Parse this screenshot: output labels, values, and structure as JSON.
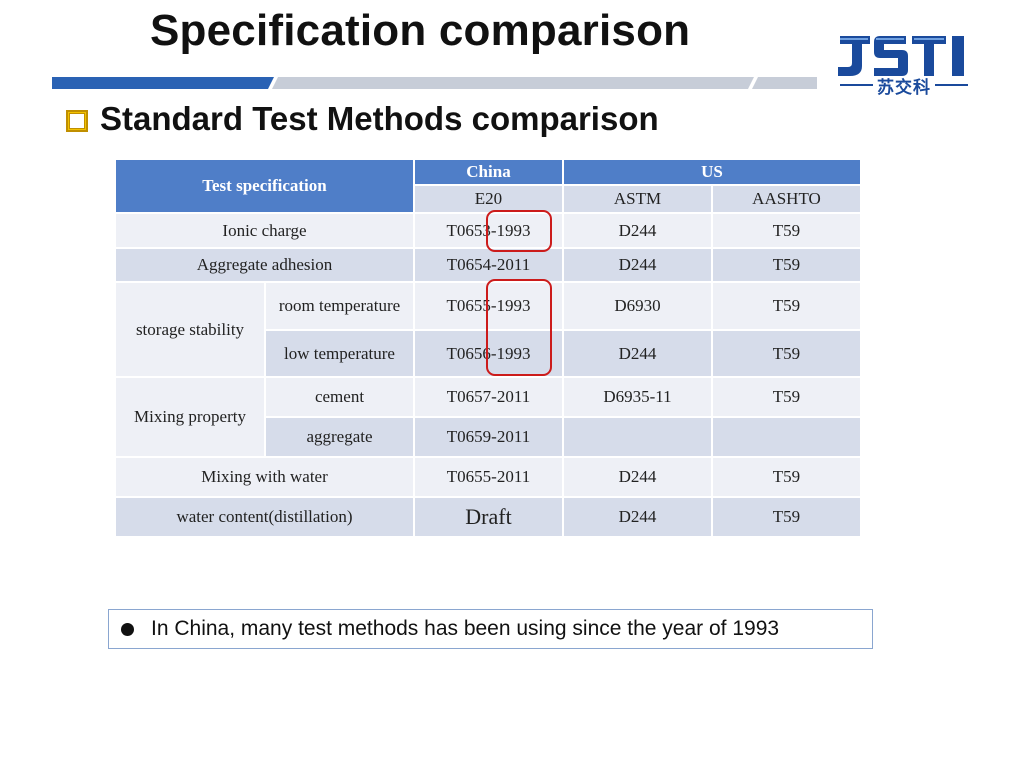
{
  "slide": {
    "title": "Specification comparison",
    "subtitle": "Standard Test Methods comparison",
    "logo": {
      "text": "JSTI",
      "subtext": "苏交科"
    }
  },
  "table": {
    "header": {
      "spec_label": "Test specification",
      "china": "China",
      "us": "US",
      "e20": "E20",
      "astm": "ASTM",
      "aashto": "AASHTO"
    },
    "rows": [
      {
        "test": "Ionic charge",
        "e20": "T0653-1993",
        "astm": "D244",
        "aashto": "T59"
      },
      {
        "test": "Aggregate adhesion",
        "e20": "T0654-2011",
        "astm": "D244",
        "aashto": "T59"
      },
      {
        "group": "storage stability",
        "test": "room temperature",
        "e20": "T0655-1993",
        "astm": "D6930",
        "aashto": "T59"
      },
      {
        "test": "low temperature",
        "e20": "T0656-1993",
        "astm": "D244",
        "aashto": "T59"
      },
      {
        "group": "Mixing property",
        "test": "cement",
        "e20": "T0657-2011",
        "astm": "D6935-11",
        "aashto": "T59"
      },
      {
        "test": "aggregate",
        "e20": "T0659-2011",
        "astm": "",
        "aashto": ""
      },
      {
        "test": "Mixing with water",
        "e20": "T0655-2011",
        "astm": "D244",
        "aashto": "T59"
      },
      {
        "test": "water content(distillation)",
        "e20": "Draft",
        "astm": "D244",
        "aashto": "T59"
      }
    ]
  },
  "note": {
    "text": "In China, many test methods has been using since the year of 1993"
  },
  "colors": {
    "header_blue": "#4f7ec8",
    "row_light": "#eef0f6",
    "row_dark": "#d6dcea",
    "highlight_red": "#cc1b1b",
    "logo_blue": "#1a4a9c",
    "bullet_gold": "#c08f00"
  },
  "icons": {
    "bullet": "square-bullet",
    "note_bullet": "round-bullet"
  }
}
